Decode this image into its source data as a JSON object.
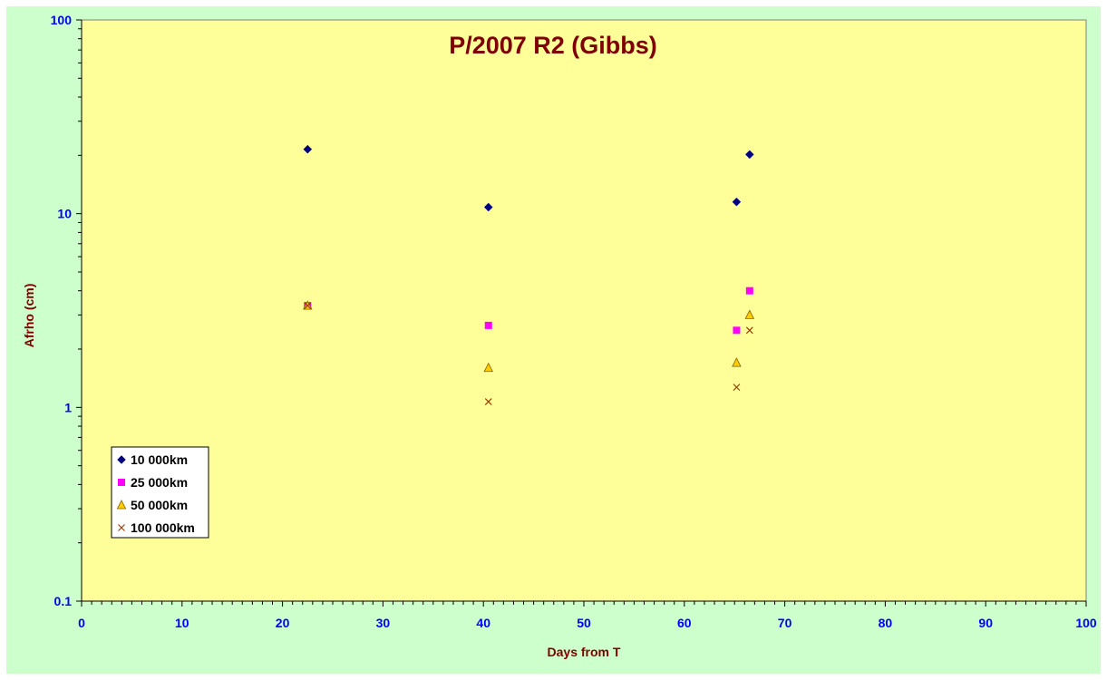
{
  "chart_data": {
    "type": "scatter",
    "title": "P/2007 R2 (Gibbs)",
    "xlabel": "Days from T",
    "ylabel": "Afrho (cm)",
    "xlim": [
      0,
      100
    ],
    "ylim": [
      0.1,
      100
    ],
    "y_scale": "log",
    "x_ticks": [
      "0",
      "10",
      "20",
      "30",
      "40",
      "50",
      "60",
      "70",
      "80",
      "90",
      "100"
    ],
    "y_ticks": [
      "0.1",
      "1",
      "10",
      "100"
    ],
    "grid": false,
    "legend_position": "bottom-left",
    "series": [
      {
        "name": "10 000km",
        "marker": "diamond",
        "color": "#000080",
        "x": [
          22.5,
          40.5,
          65.2,
          66.5
        ],
        "y": [
          21.5,
          10.8,
          11.5,
          20.2
        ]
      },
      {
        "name": "25 000km",
        "marker": "square",
        "color": "#ff00ff",
        "x": [
          22.5,
          40.5,
          65.2,
          66.5
        ],
        "y": [
          3.35,
          2.65,
          2.5,
          4.0
        ]
      },
      {
        "name": "50 000km",
        "marker": "triangle",
        "color": "#ffcc00",
        "x": [
          22.5,
          40.5,
          65.2,
          66.5
        ],
        "y": [
          3.35,
          1.6,
          1.7,
          3.0
        ]
      },
      {
        "name": "100 000km",
        "marker": "x",
        "color": "#993300",
        "x": [
          22.5,
          40.5,
          65.2,
          66.5
        ],
        "y": [
          3.35,
          1.07,
          1.27,
          2.5
        ]
      }
    ],
    "colors": {
      "chart_background": "#ccffcc",
      "plot_background": "#ffff99",
      "title": "#800000",
      "axis_title": "#800000",
      "tick_label": "#0000ff"
    }
  }
}
